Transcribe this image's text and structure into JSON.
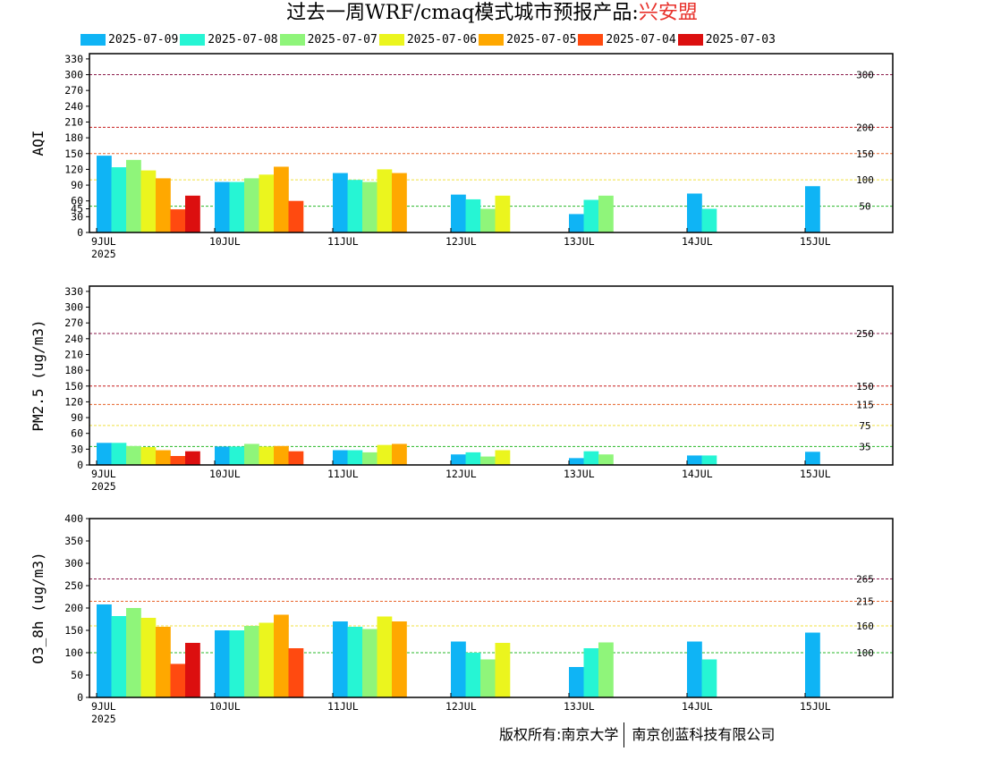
{
  "title": {
    "main": "过去一周WRF/cmaq模式城市预报产品:",
    "city": "兴安盟"
  },
  "copyright": {
    "left": "版权所有:南京大学",
    "right": "南京创蓝科技有限公司"
  },
  "legend": [
    {
      "label": "2025-07-09",
      "color": "#0fb4f5"
    },
    {
      "label": "2025-07-08",
      "color": "#26f5d4"
    },
    {
      "label": "2025-07-07",
      "color": "#8ff57a"
    },
    {
      "label": "2025-07-06",
      "color": "#ebf51e"
    },
    {
      "label": "2025-07-05",
      "color": "#ffa800"
    },
    {
      "label": "2025-07-04",
      "color": "#ff4a10"
    },
    {
      "label": "2025-07-03",
      "color": "#dc0f0f"
    }
  ],
  "chart_data": [
    {
      "type": "bar",
      "ylabel": "AQI",
      "ylim": [
        0,
        340
      ],
      "yticks": [
        0,
        30,
        45,
        60,
        90,
        120,
        150,
        180,
        210,
        240,
        270,
        300,
        330
      ],
      "categories": [
        "9JUL",
        "10JUL",
        "11JUL",
        "12JUL",
        "13JUL",
        "14JUL",
        "15JUL"
      ],
      "first_category_sublabel": "2025",
      "thresholds": [
        {
          "value": 300,
          "label": "300",
          "color": "#8b1a4a"
        },
        {
          "value": 200,
          "label": "200",
          "color": "#c81e1e"
        },
        {
          "value": 150,
          "label": "150",
          "color": "#e8632a"
        },
        {
          "value": 100,
          "label": "100",
          "color": "#f0e040"
        },
        {
          "value": 50,
          "label": "50",
          "color": "#28b828"
        }
      ],
      "series": [
        {
          "name": "2025-07-09",
          "values": [
            146,
            96,
            113,
            72,
            35,
            74,
            88
          ]
        },
        {
          "name": "2025-07-08",
          "values": [
            124,
            96,
            100,
            63,
            62,
            45,
            null
          ]
        },
        {
          "name": "2025-07-07",
          "values": [
            138,
            103,
            96,
            45,
            70,
            null,
            null
          ]
        },
        {
          "name": "2025-07-06",
          "values": [
            118,
            110,
            120,
            70,
            null,
            null,
            null
          ]
        },
        {
          "name": "2025-07-05",
          "values": [
            103,
            125,
            113,
            null,
            null,
            null,
            null
          ]
        },
        {
          "name": "2025-07-04",
          "values": [
            44,
            60,
            null,
            null,
            null,
            null,
            null
          ]
        },
        {
          "name": "2025-07-03",
          "values": [
            70,
            null,
            null,
            null,
            null,
            null,
            null
          ]
        }
      ]
    },
    {
      "type": "bar",
      "ylabel": "PM2.5 (ug/m3)",
      "ylim": [
        0,
        340
      ],
      "yticks": [
        0,
        30,
        60,
        90,
        120,
        150,
        180,
        210,
        240,
        270,
        300,
        330
      ],
      "categories": [
        "9JUL",
        "10JUL",
        "11JUL",
        "12JUL",
        "13JUL",
        "14JUL",
        "15JUL"
      ],
      "first_category_sublabel": "2025",
      "thresholds": [
        {
          "value": 250,
          "label": "250",
          "color": "#8b1a4a"
        },
        {
          "value": 150,
          "label": "150",
          "color": "#c81e1e"
        },
        {
          "value": 115,
          "label": "115",
          "color": "#e8632a"
        },
        {
          "value": 75,
          "label": "75",
          "color": "#f0e040"
        },
        {
          "value": 35,
          "label": "35",
          "color": "#28b828"
        }
      ],
      "series": [
        {
          "name": "2025-07-09",
          "values": [
            42,
            35,
            28,
            20,
            13,
            18,
            25
          ]
        },
        {
          "name": "2025-07-08",
          "values": [
            42,
            35,
            28,
            24,
            26,
            18,
            null
          ]
        },
        {
          "name": "2025-07-07",
          "values": [
            36,
            40,
            24,
            16,
            20,
            null,
            null
          ]
        },
        {
          "name": "2025-07-06",
          "values": [
            34,
            35,
            38,
            28,
            null,
            null,
            null
          ]
        },
        {
          "name": "2025-07-05",
          "values": [
            28,
            36,
            40,
            null,
            null,
            null,
            null
          ]
        },
        {
          "name": "2025-07-04",
          "values": [
            17,
            26,
            null,
            null,
            null,
            null,
            null
          ]
        },
        {
          "name": "2025-07-03",
          "values": [
            26,
            null,
            null,
            null,
            null,
            null,
            null
          ]
        }
      ]
    },
    {
      "type": "bar",
      "ylabel": "O3_8h (ug/m3)",
      "ylim": [
        0,
        400
      ],
      "yticks": [
        0,
        50,
        100,
        150,
        200,
        250,
        300,
        350,
        400
      ],
      "categories": [
        "9JUL",
        "10JUL",
        "11JUL",
        "12JUL",
        "13JUL",
        "14JUL",
        "15JUL"
      ],
      "first_category_sublabel": "2025",
      "thresholds": [
        {
          "value": 265,
          "label": "265",
          "color": "#8b1a4a"
        },
        {
          "value": 215,
          "label": "215",
          "color": "#e8632a"
        },
        {
          "value": 160,
          "label": "160",
          "color": "#f0e040"
        },
        {
          "value": 100,
          "label": "100",
          "color": "#28b828"
        }
      ],
      "series": [
        {
          "name": "2025-07-09",
          "values": [
            208,
            150,
            170,
            125,
            68,
            125,
            145
          ]
        },
        {
          "name": "2025-07-08",
          "values": [
            182,
            150,
            158,
            100,
            110,
            85,
            null
          ]
        },
        {
          "name": "2025-07-07",
          "values": [
            200,
            160,
            153,
            85,
            123,
            null,
            null
          ]
        },
        {
          "name": "2025-07-06",
          "values": [
            178,
            167,
            181,
            122,
            null,
            null,
            null
          ]
        },
        {
          "name": "2025-07-05",
          "values": [
            158,
            185,
            170,
            null,
            null,
            null,
            null
          ]
        },
        {
          "name": "2025-07-04",
          "values": [
            75,
            110,
            null,
            null,
            null,
            null,
            null
          ]
        },
        {
          "name": "2025-07-03",
          "values": [
            122,
            null,
            null,
            null,
            null,
            null,
            null
          ]
        }
      ]
    }
  ]
}
